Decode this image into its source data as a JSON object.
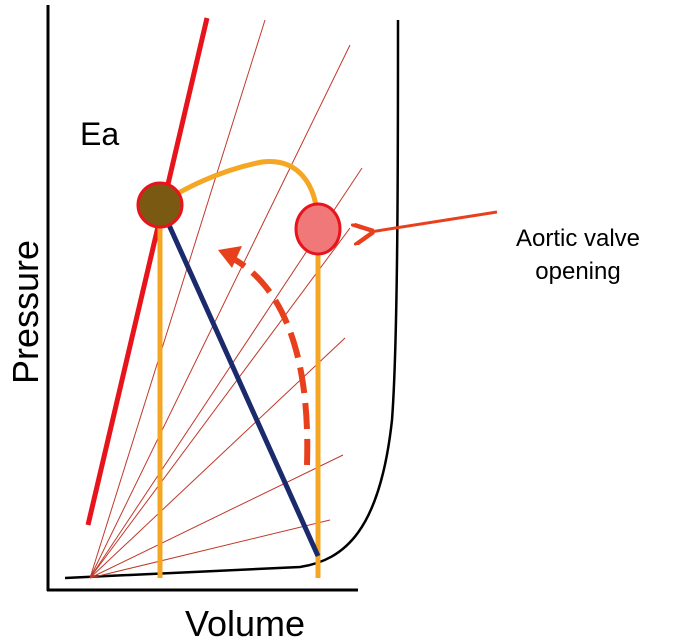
{
  "labels": {
    "ea": "Ea",
    "y_axis": "Pressure",
    "x_axis": "Volume",
    "annotation": [
      "Aortic valve",
      "opening"
    ]
  }
}
